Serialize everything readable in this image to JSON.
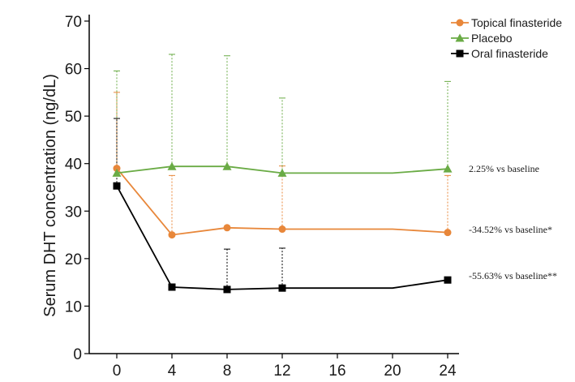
{
  "chart_data": {
    "type": "line",
    "title": "",
    "xlabel": "",
    "ylabel": "Serum DHT concentration (ng/dL)",
    "x_ticks": [
      0,
      4,
      8,
      12,
      16,
      20,
      24
    ],
    "y_ticks": [
      0,
      10,
      20,
      30,
      40,
      50,
      60,
      70
    ],
    "xlim": [
      0,
      24
    ],
    "ylim": [
      0,
      70
    ],
    "grid": false,
    "legend_position": "top-right",
    "series": [
      {
        "name": "Topical finasteride",
        "color": "#e8873a",
        "marker": "circle",
        "x": [
          0,
          4,
          8,
          12,
          20,
          24
        ],
        "y": [
          39,
          25,
          26.5,
          26.2,
          26.2,
          25.5
        ],
        "marker_x": [
          0,
          4,
          8,
          12,
          24
        ],
        "error_upper": [
          55,
          37.5,
          null,
          39.5,
          37.5
        ],
        "annotation": "-34.52% vs baseline*"
      },
      {
        "name": "Placebo",
        "color": "#6aab45",
        "marker": "triangle",
        "x": [
          0,
          4,
          8,
          12,
          20,
          24
        ],
        "y": [
          38,
          39.4,
          39.4,
          38,
          38,
          38.9
        ],
        "marker_x": [
          0,
          4,
          8,
          12,
          24
        ],
        "error_upper": [
          59.5,
          63,
          62.7,
          53.8,
          57.3
        ],
        "annotation": "2.25% vs baseline"
      },
      {
        "name": "Oral finasteride",
        "color": "#000000",
        "marker": "square",
        "x": [
          0,
          4,
          8,
          12,
          20,
          24
        ],
        "y": [
          35.3,
          14,
          13.5,
          13.8,
          13.8,
          15.5
        ],
        "marker_x": [
          0,
          4,
          8,
          12,
          24
        ],
        "error_upper": [
          49.5,
          null,
          22,
          22.2,
          null
        ],
        "annotation": "-55.63% vs baseline**"
      }
    ]
  }
}
